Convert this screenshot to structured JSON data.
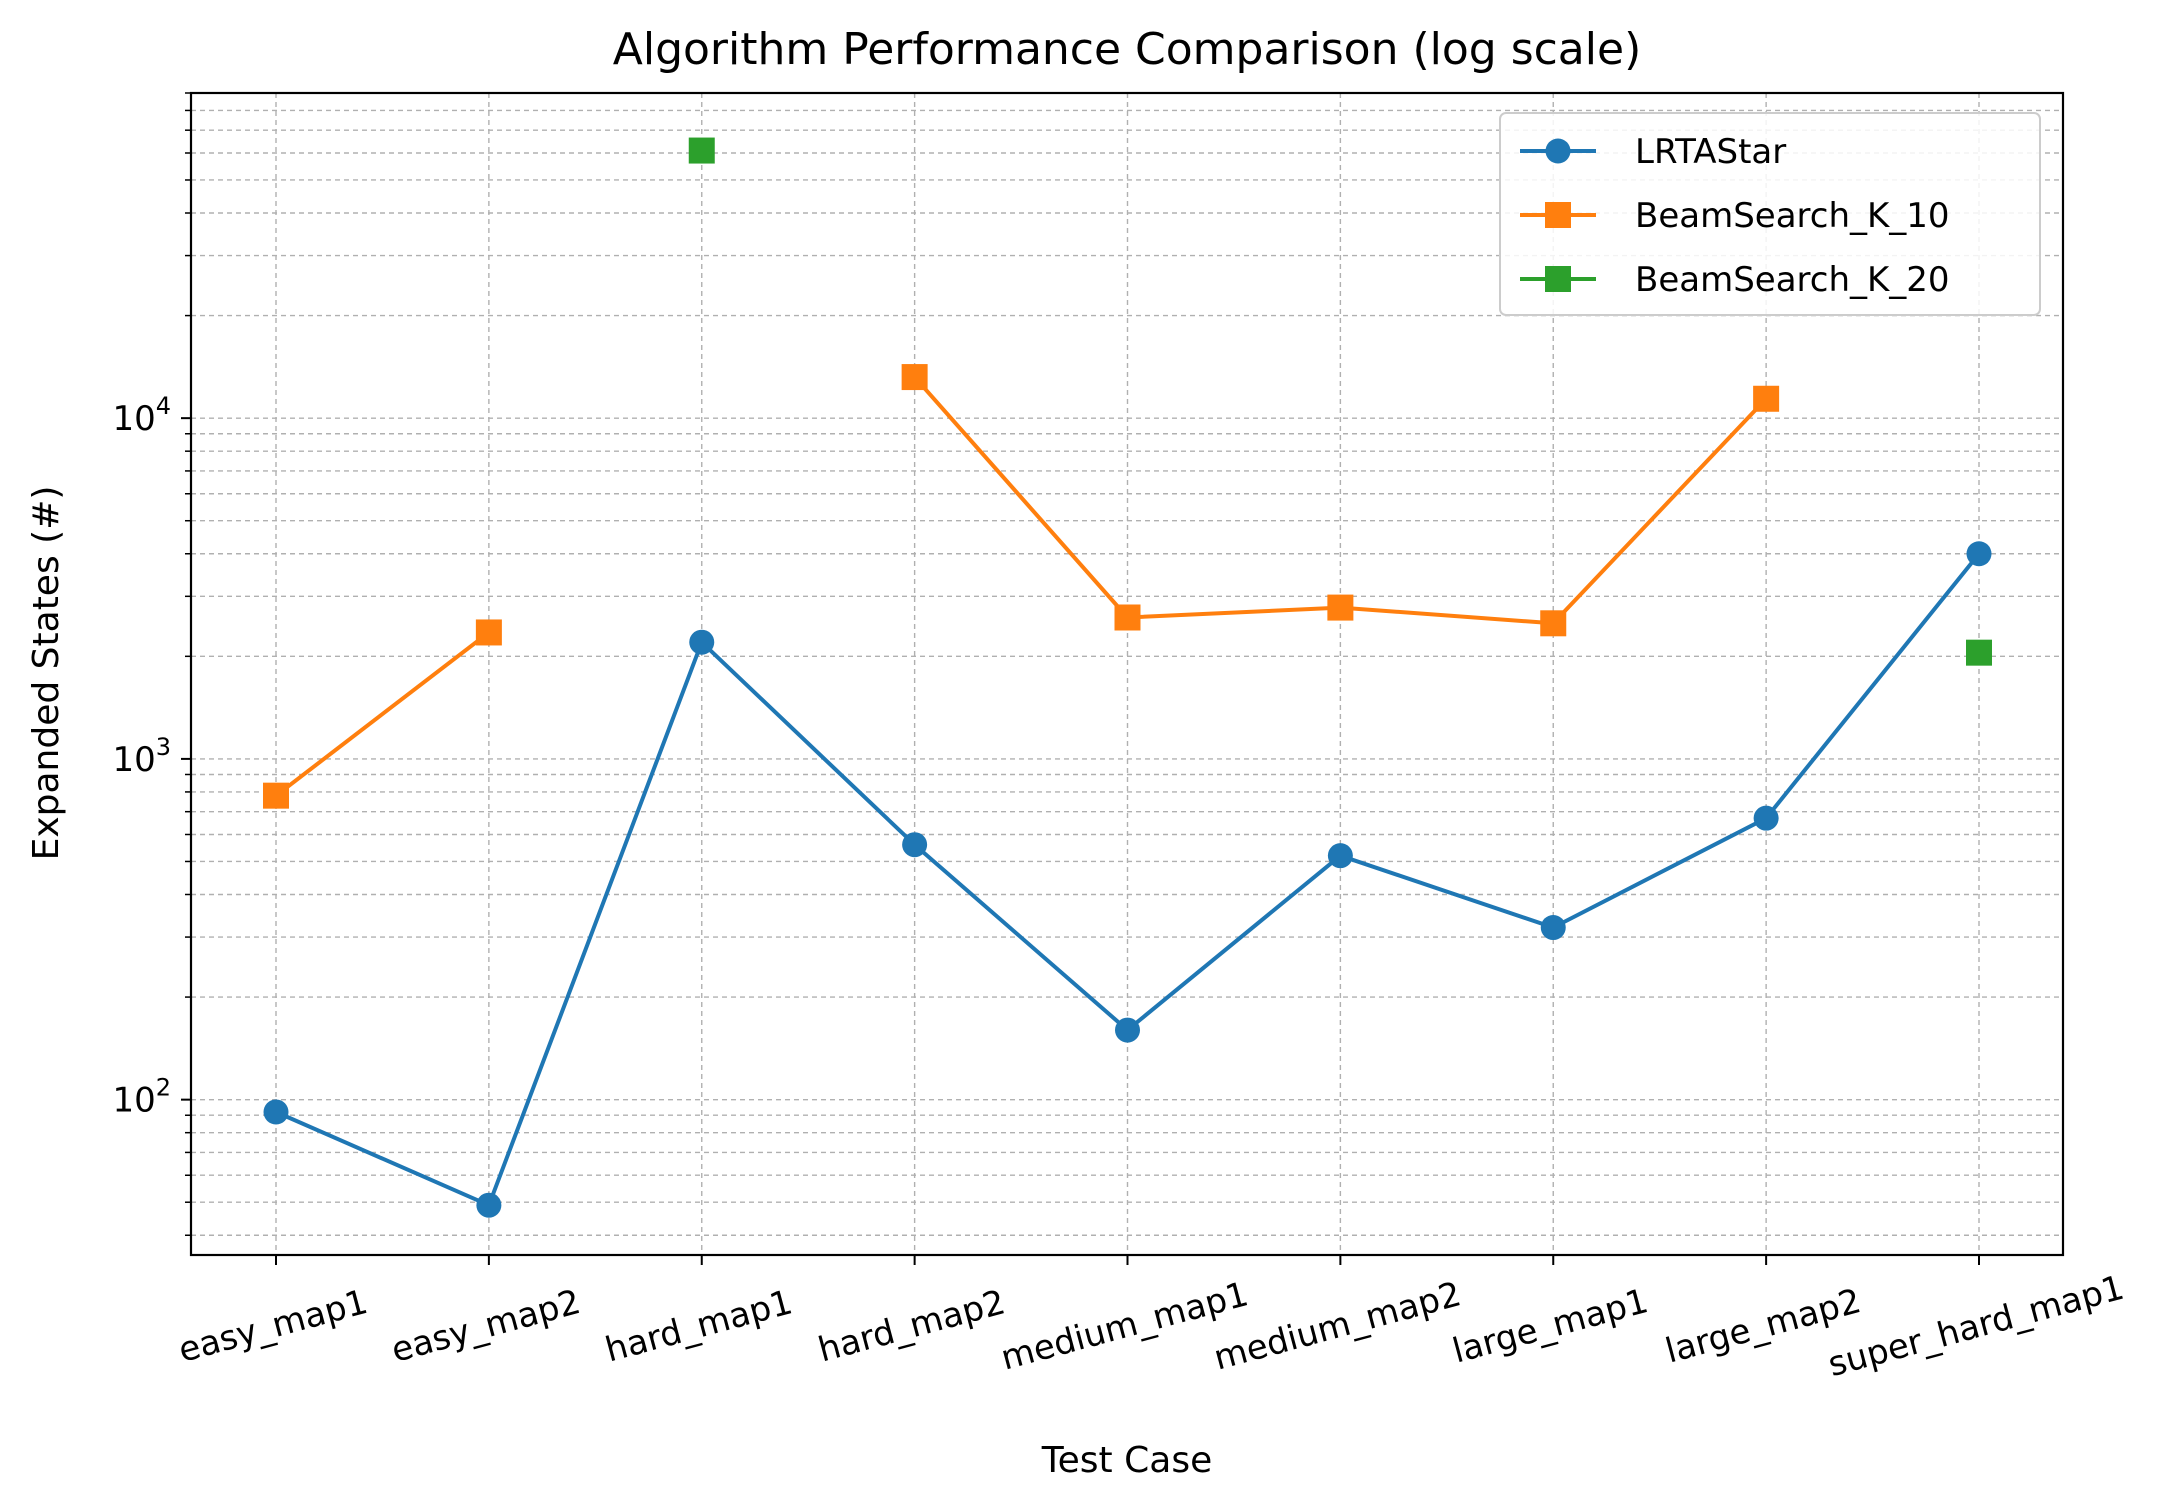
{
  "chart_data": {
    "type": "line",
    "title": "Algorithm Performance Comparison (log scale)",
    "xlabel": "Test Case",
    "ylabel": "Expanded States (#)",
    "yscale": "log",
    "ylim": [
      35,
      90000
    ],
    "grid": true,
    "grid_minor": true,
    "legend_position": "top-right",
    "categories": [
      "easy_map1",
      "easy_map2",
      "hard_map1",
      "hard_map2",
      "medium_map1",
      "medium_map2",
      "large_map1",
      "large_map2",
      "super_hard_map1"
    ],
    "y_ticks": [
      {
        "value": 100,
        "base": "10",
        "exp": "2"
      },
      {
        "value": 1000,
        "base": "10",
        "exp": "3"
      },
      {
        "value": 10000,
        "base": "10",
        "exp": "4"
      }
    ],
    "series": [
      {
        "name": "LRTAStar",
        "color": "#1f77b4",
        "marker": "circle",
        "values": [
          92,
          49,
          2200,
          560,
          160,
          520,
          320,
          670,
          4000
        ]
      },
      {
        "name": "BeamSearch_K_10",
        "color": "#ff7f0e",
        "marker": "square",
        "values": [
          780,
          2350,
          null,
          13200,
          2600,
          2780,
          2500,
          11400,
          null
        ]
      },
      {
        "name": "BeamSearch_K_20",
        "color": "#2ca02c",
        "marker": "square",
        "values": [
          null,
          null,
          61000,
          null,
          null,
          null,
          null,
          null,
          2050
        ]
      }
    ]
  }
}
